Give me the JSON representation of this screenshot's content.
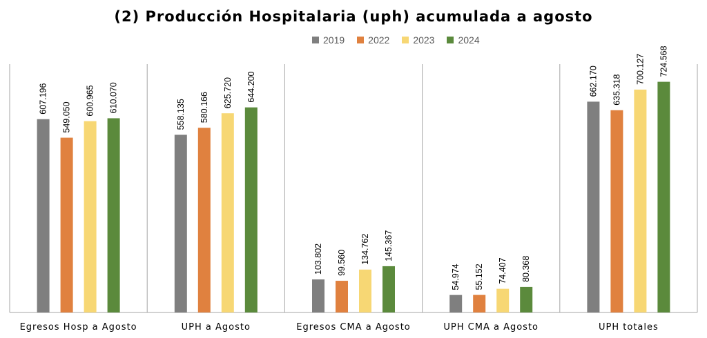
{
  "chart_data": {
    "type": "bar",
    "title": "(2) Producción Hospitalaria (uph) acumulada a agosto",
    "categories": [
      "Egresos Hosp a Agosto",
      "UPH a Agosto",
      "Egresos CMA a Agosto",
      "UPH CMA a Agosto",
      "UPH totales"
    ],
    "series": [
      {
        "name": "2019",
        "color": "#7f7f7f",
        "values": [
          607196,
          558135,
          103802,
          54974,
          662170
        ],
        "labels": [
          "607.196",
          "558.135",
          "103.802",
          "54.974",
          "662.170"
        ]
      },
      {
        "name": "2022",
        "color": "#e0813f",
        "values": [
          549050,
          580166,
          99560,
          55152,
          635318
        ],
        "labels": [
          "549.050",
          "580.166",
          "99.560",
          "55.152",
          "635.318"
        ]
      },
      {
        "name": "2023",
        "color": "#f7d774",
        "values": [
          600965,
          625720,
          134762,
          74407,
          700127
        ],
        "labels": [
          "600.965",
          "625.720",
          "134.762",
          "74.407",
          "700.127"
        ]
      },
      {
        "name": "2024",
        "color": "#5b8a3c",
        "values": [
          610070,
          644200,
          145367,
          80368,
          724568
        ],
        "labels": [
          "610.070",
          "644.200",
          "145.367",
          "80.368",
          "724.568"
        ]
      }
    ],
    "ylim": [
      0,
      780000
    ],
    "legend_position": "top-center",
    "grid": false
  }
}
